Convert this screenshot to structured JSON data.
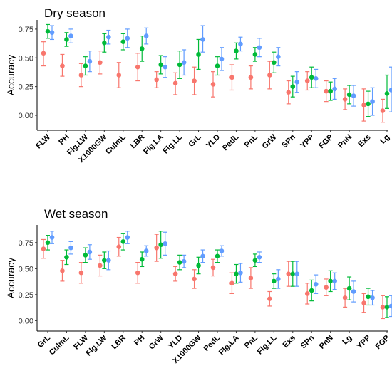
{
  "chart_data": [
    {
      "type": "scatter",
      "title": "Dry season",
      "ylabel": "Accuracy",
      "ylim": [
        -0.13,
        0.83
      ],
      "yticks": [
        "0.00",
        "0.25",
        "0.50",
        "0.75"
      ],
      "legend": "none",
      "categories": [
        "FLW",
        "PH",
        "Flg.LW",
        "X1000GW",
        "CulmL",
        "LBR",
        "Flg.LA",
        "Flg.LL",
        "GrL",
        "YLD",
        "PedL",
        "PnL",
        "GrW",
        "SPn",
        "YPP",
        "FGP",
        "PnN",
        "Exs",
        "Lg"
      ],
      "series": [
        {
          "color": "#f8766d",
          "values": [
            0.54,
            0.43,
            0.35,
            0.46,
            0.35,
            0.42,
            0.31,
            0.28,
            0.3,
            0.27,
            0.33,
            0.33,
            0.35,
            0.2,
            0.3,
            0.21,
            0.14,
            0.09,
            0.04
          ],
          "lower": [
            0.43,
            0.34,
            0.25,
            0.36,
            0.24,
            0.3,
            0.24,
            0.18,
            0.18,
            0.16,
            0.22,
            0.23,
            0.23,
            0.1,
            0.22,
            0.12,
            0.05,
            -0.05,
            -0.06
          ],
          "upper": [
            0.64,
            0.53,
            0.45,
            0.56,
            0.46,
            0.54,
            0.38,
            0.37,
            0.42,
            0.38,
            0.44,
            0.43,
            0.47,
            0.3,
            0.38,
            0.3,
            0.23,
            0.23,
            0.14
          ]
        },
        {
          "color": "#00ba38",
          "values": [
            0.73,
            0.66,
            0.43,
            0.63,
            0.64,
            0.58,
            0.44,
            0.44,
            0.53,
            0.43,
            0.56,
            0.53,
            0.46,
            0.25,
            0.33,
            0.21,
            0.18,
            0.1,
            0.19
          ],
          "lower": [
            0.67,
            0.6,
            0.35,
            0.55,
            0.57,
            0.47,
            0.36,
            0.32,
            0.4,
            0.35,
            0.49,
            0.47,
            0.37,
            0.16,
            0.24,
            0.13,
            0.1,
            -0.01,
            0.06
          ],
          "upper": [
            0.79,
            0.72,
            0.51,
            0.71,
            0.71,
            0.69,
            0.52,
            0.56,
            0.66,
            0.51,
            0.63,
            0.59,
            0.55,
            0.34,
            0.42,
            0.29,
            0.26,
            0.21,
            0.35
          ]
        },
        {
          "color": "#619cff",
          "values": [
            0.72,
            0.69,
            0.47,
            0.68,
            0.67,
            0.69,
            0.42,
            0.46,
            0.66,
            0.49,
            0.62,
            0.59,
            0.51,
            0.29,
            0.32,
            0.23,
            0.17,
            0.12,
            0.22
          ],
          "lower": [
            0.66,
            0.63,
            0.38,
            0.62,
            0.59,
            0.62,
            0.33,
            0.35,
            0.55,
            0.39,
            0.56,
            0.51,
            0.43,
            0.2,
            0.24,
            0.14,
            0.08,
            0.0,
            0.03
          ],
          "upper": [
            0.78,
            0.75,
            0.56,
            0.74,
            0.75,
            0.76,
            0.51,
            0.57,
            0.78,
            0.59,
            0.68,
            0.67,
            0.59,
            0.38,
            0.4,
            0.32,
            0.26,
            0.24,
            0.42
          ]
        }
      ]
    },
    {
      "type": "scatter",
      "title": "Wet season",
      "ylabel": "Accuracy",
      "ylim": [
        -0.1,
        0.92
      ],
      "yticks": [
        "0.00",
        "0.25",
        "0.50",
        "0.75"
      ],
      "legend": "none",
      "categories": [
        "GrL",
        "CulmL",
        "FLW",
        "Flg.LW",
        "LBR",
        "PH",
        "GrW",
        "YLD",
        "X1000GW",
        "PedL",
        "Flg.LA",
        "PnL",
        "Flg.LL",
        "Exs",
        "SPn",
        "PnN",
        "Lg",
        "YPP",
        "FGP"
      ],
      "series": [
        {
          "color": "#f8766d",
          "values": [
            0.69,
            0.48,
            0.46,
            0.53,
            0.71,
            0.46,
            0.7,
            0.45,
            0.4,
            0.51,
            0.36,
            0.41,
            0.21,
            0.45,
            0.26,
            0.32,
            0.22,
            0.17,
            0.13
          ],
          "lower": [
            0.6,
            0.38,
            0.36,
            0.43,
            0.62,
            0.36,
            0.57,
            0.38,
            0.31,
            0.43,
            0.26,
            0.31,
            0.14,
            0.33,
            0.16,
            0.24,
            0.13,
            0.08,
            0.02
          ],
          "upper": [
            0.78,
            0.58,
            0.56,
            0.63,
            0.8,
            0.56,
            0.83,
            0.52,
            0.49,
            0.59,
            0.46,
            0.51,
            0.28,
            0.57,
            0.36,
            0.4,
            0.31,
            0.26,
            0.24
          ]
        },
        {
          "color": "#00ba38",
          "values": [
            0.75,
            0.61,
            0.63,
            0.58,
            0.76,
            0.59,
            0.73,
            0.56,
            0.53,
            0.62,
            0.45,
            0.58,
            0.38,
            0.45,
            0.29,
            0.38,
            0.31,
            0.23,
            0.13
          ],
          "lower": [
            0.68,
            0.54,
            0.56,
            0.5,
            0.68,
            0.52,
            0.6,
            0.49,
            0.45,
            0.56,
            0.36,
            0.52,
            0.31,
            0.33,
            0.19,
            0.28,
            0.2,
            0.15,
            0.03
          ],
          "upper": [
            0.82,
            0.68,
            0.7,
            0.66,
            0.84,
            0.66,
            0.86,
            0.63,
            0.61,
            0.68,
            0.54,
            0.64,
            0.45,
            0.57,
            0.39,
            0.48,
            0.42,
            0.31,
            0.23
          ]
        },
        {
          "color": "#619cff",
          "values": [
            0.8,
            0.7,
            0.66,
            0.58,
            0.8,
            0.67,
            0.74,
            0.57,
            0.62,
            0.67,
            0.46,
            0.61,
            0.4,
            0.45,
            0.35,
            0.38,
            0.28,
            0.22,
            0.14
          ],
          "lower": [
            0.74,
            0.64,
            0.59,
            0.49,
            0.74,
            0.62,
            0.63,
            0.51,
            0.56,
            0.62,
            0.37,
            0.56,
            0.31,
            0.33,
            0.26,
            0.3,
            0.18,
            0.15,
            0.04
          ],
          "upper": [
            0.86,
            0.76,
            0.73,
            0.67,
            0.86,
            0.72,
            0.85,
            0.63,
            0.68,
            0.72,
            0.55,
            0.66,
            0.49,
            0.57,
            0.44,
            0.46,
            0.38,
            0.29,
            0.24
          ]
        }
      ]
    }
  ]
}
